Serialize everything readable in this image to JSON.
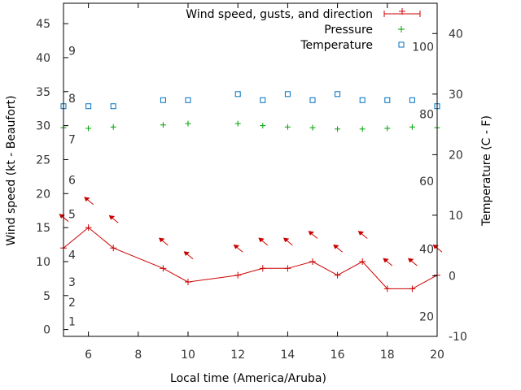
{
  "chart_data": {
    "type": "line",
    "title": "",
    "xlabel": "Local time (America/Aruba)",
    "ylabel_left": "Wind speed (kt - Beaufort)",
    "ylabel_right": "Temperature (C - F)",
    "xlim": [
      5,
      20
    ],
    "ylim_left": [
      -1,
      48
    ],
    "ylim_right": [
      -10,
      45
    ],
    "x_ticks": [
      6,
      8,
      10,
      12,
      14,
      16,
      18,
      20
    ],
    "y_left_ticks": [
      0,
      5,
      10,
      15,
      20,
      25,
      30,
      35,
      40,
      45
    ],
    "y_right_ticks": [
      -10,
      0,
      10,
      20,
      30,
      40
    ],
    "beaufort_labels": [
      {
        "text": "1",
        "wind": 1.2
      },
      {
        "text": "2",
        "wind": 4.0
      },
      {
        "text": "3",
        "wind": 7.0
      },
      {
        "text": "4",
        "wind": 11.0
      },
      {
        "text": "5",
        "wind": 17.0
      },
      {
        "text": "6",
        "wind": 22.0
      },
      {
        "text": "7",
        "wind": 28.0
      },
      {
        "text": "8",
        "wind": 34.0
      },
      {
        "text": "9",
        "wind": 41.0
      }
    ],
    "fahrenheit_labels": [
      {
        "text": "20",
        "temp": -6.7
      },
      {
        "text": "40",
        "temp": 4.4
      },
      {
        "text": "60",
        "temp": 15.6
      },
      {
        "text": "80",
        "temp": 26.7
      },
      {
        "text": "100",
        "temp": 37.8
      }
    ],
    "legend": {
      "placement": "top-right",
      "entries": [
        "Wind speed, gusts, and direction",
        "Pressure",
        "Temperature"
      ]
    },
    "series": [
      {
        "name": "Wind speed, gusts, and direction",
        "color": "#cc0000",
        "x": [
          5,
          6,
          7,
          9,
          10,
          12,
          13,
          14,
          15,
          16,
          17,
          18,
          19,
          20
        ],
        "values": [
          12,
          15,
          12,
          9,
          7,
          8,
          9,
          9,
          10,
          8,
          10,
          6,
          6,
          8
        ],
        "direction_arrows": [
          {
            "x": 5,
            "y": 16.5
          },
          {
            "x": 6,
            "y": 19
          },
          {
            "x": 7,
            "y": 16.3
          },
          {
            "x": 9,
            "y": 13
          },
          {
            "x": 10,
            "y": 11
          },
          {
            "x": 12,
            "y": 12
          },
          {
            "x": 13,
            "y": 13
          },
          {
            "x": 14,
            "y": 13
          },
          {
            "x": 15,
            "y": 14
          },
          {
            "x": 16,
            "y": 12
          },
          {
            "x": 17,
            "y": 14
          },
          {
            "x": 18,
            "y": 10
          },
          {
            "x": 19,
            "y": 10
          },
          {
            "x": 20,
            "y": 12
          }
        ]
      },
      {
        "name": "Pressure",
        "color": "#00a000",
        "x": [
          5,
          6,
          7,
          9,
          10,
          12,
          13,
          14,
          15,
          16,
          17,
          18,
          19,
          20
        ],
        "values": [
          29.7,
          29.6,
          29.8,
          30.1,
          30.3,
          30.3,
          30.0,
          29.8,
          29.7,
          29.5,
          29.5,
          29.6,
          29.8,
          29.7
        ]
      },
      {
        "name": "Temperature",
        "color": "#0070c0",
        "x": [
          5,
          6,
          7,
          9,
          10,
          12,
          13,
          14,
          15,
          16,
          17,
          18,
          19,
          20
        ],
        "values": [
          28,
          28,
          28,
          29,
          29,
          30,
          29,
          30,
          29,
          30,
          29,
          29,
          29,
          28
        ]
      }
    ]
  }
}
